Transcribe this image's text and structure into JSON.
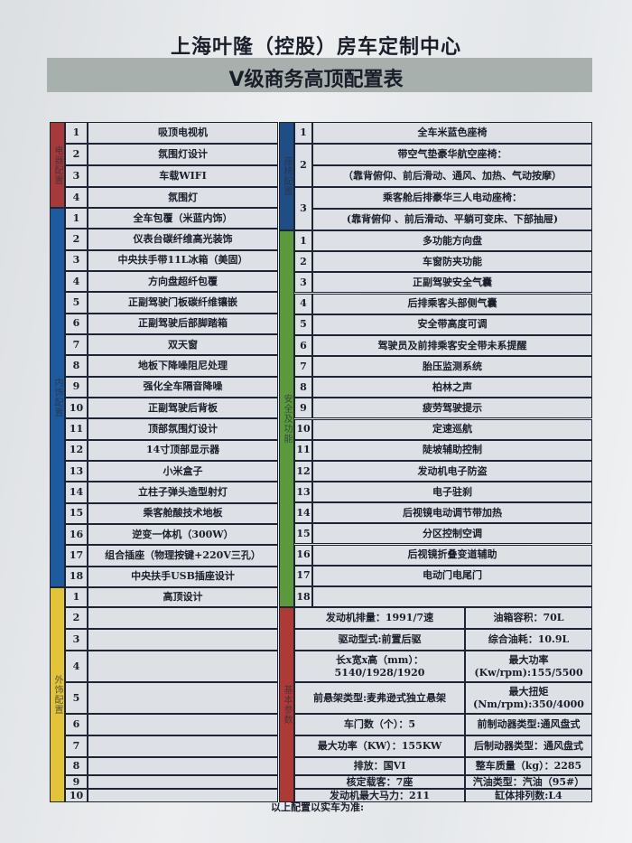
{
  "header": {
    "company": "上海叶隆（控股）房车定制中心",
    "title": "V级商务高顶配置表"
  },
  "left_sections": [
    {
      "label": "电器配置",
      "color": "#a63a3a",
      "items": [
        "吸顶电视机",
        "氛围灯设计",
        "车载WIFI",
        "氛围灯"
      ]
    },
    {
      "label": "内饰配置",
      "color": "#1d5a9e",
      "items": [
        "全车包覆（米蓝内饰）",
        "仪表台碳纤维高光装饰",
        "中央扶手带11L冰箱（美固）",
        "方向盘超纤包覆",
        "正副驾驶门板碳纤维镶嵌",
        "正副驾驶后部脚踏箱",
        "双天窗",
        "地板下降噪阻尼处理",
        "强化全车隔音降噪",
        "正副驾驶后背板",
        "顶部氛围灯设计",
        "14寸顶部显示器",
        "小米盒子",
        "立柱子弹头造型射灯",
        "乘客舱酸技术地板",
        "逆变一体机（300W）",
        "组合插座（物理按键+220V三孔）",
        "中央扶手USB插座设计"
      ]
    },
    {
      "label": "外饰配置",
      "color": "#e2c33a",
      "items": [
        "高顶设计",
        "",
        "",
        "",
        "",
        "",
        "",
        "",
        "",
        ""
      ]
    }
  ],
  "seat_section": {
    "label": "座椅配置",
    "color": "#1f4d86",
    "items": [
      {
        "lines": [
          "全车米蓝色座椅"
        ]
      },
      {
        "lines": [
          "带空气垫豪华航空座椅：",
          "（靠背俯仰、前后滑动、通风、加热、气动按摩）"
        ]
      },
      {
        "lines": [
          "乘客舱后排豪华三人电动座椅：",
          "(靠背俯仰 、前后滑动、平躺可变床、下部抽屉)"
        ]
      }
    ]
  },
  "safety_section": {
    "label": "安全及功能",
    "color": "#5a9a3c",
    "items": [
      "多功能方向盘",
      "车窗防夹功能",
      "正副驾驶安全气囊",
      "后排乘客头部侧气囊",
      "安全带高度可调",
      "驾驶员及前排乘客安全带未系提醒",
      "胎压监测系统",
      "柏林之声",
      "疲劳驾驶提示",
      "定速巡航",
      "陡坡辅助控制",
      "发动机电子防盗",
      "电子驻刹",
      "后视镜电动调节带加热",
      "分区控制空调",
      "后视镜折叠变道辅助",
      "电动门电尾门",
      ""
    ]
  },
  "params_section": {
    "label": "基本参数",
    "color": "#ad3a35",
    "rows": [
      [
        "发动机排量：1991/7速",
        "油箱容积：70L"
      ],
      [
        "驱动型式:前置后驱",
        "综合油耗：10.9L"
      ],
      [
        "长x宽x高（mm）：5140/1928/1920",
        "最大功率\n(Kw/rpm):155/5500"
      ],
      [
        "前悬架类型:麦弗逊式独立悬架",
        "最大扭矩\n(Nm/rpm):350/4000"
      ],
      [
        "车门数（个）：5",
        "前制动器类型:通风盘式"
      ],
      [
        "最大功率（KW）：155KW",
        "后制动器类型：通风盘式"
      ],
      [
        "排放：国VI",
        "整车质量（kg）：2285"
      ],
      [
        "核定载客：7座",
        "汽油类型：汽油（95#）"
      ],
      [
        "发动机最大马力：211",
        "缸体排列数:L4"
      ]
    ]
  },
  "footnote": "以上配置以实车为准:"
}
